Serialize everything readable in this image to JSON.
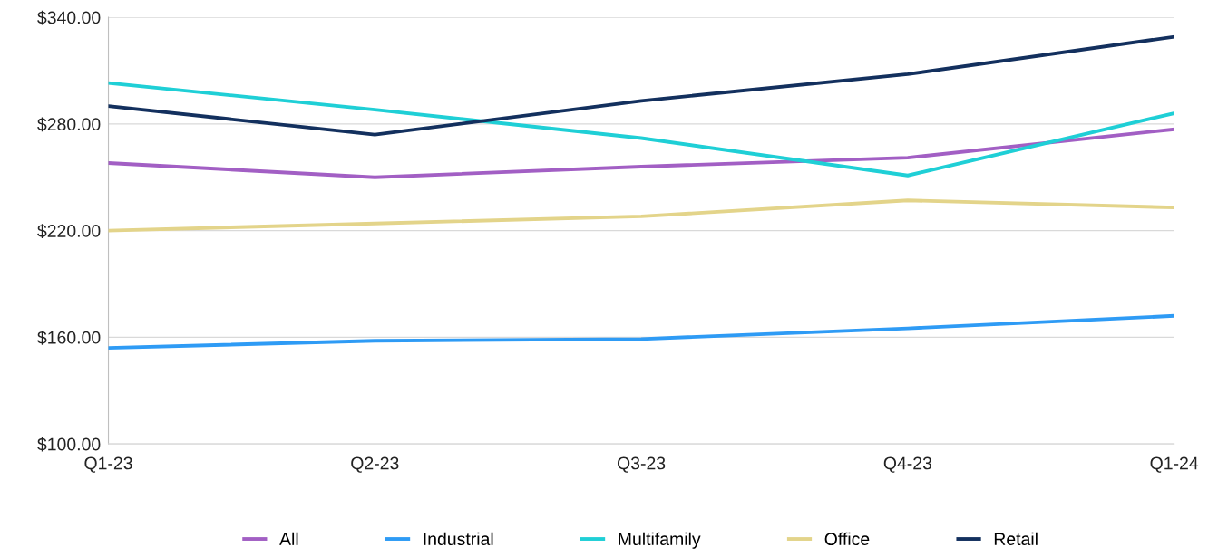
{
  "chart_data": {
    "type": "line",
    "categories": [
      "Q1-23",
      "Q2-23",
      "Q3-23",
      "Q4-23",
      "Q1-24"
    ],
    "series": [
      {
        "name": "All",
        "color": "#a25fc4",
        "values": [
          258,
          250,
          256,
          261,
          277
        ]
      },
      {
        "name": "Industrial",
        "color": "#2e9bf5",
        "values": [
          154,
          158,
          159,
          165,
          172
        ]
      },
      {
        "name": "Multifamily",
        "color": "#1fcfd6",
        "values": [
          303,
          288,
          272,
          251,
          286
        ]
      },
      {
        "name": "Office",
        "color": "#e3d48a",
        "values": [
          220,
          224,
          228,
          237,
          233
        ]
      },
      {
        "name": "Retail",
        "color": "#13305e",
        "values": [
          290,
          274,
          293,
          308,
          329
        ]
      }
    ],
    "ylim": [
      100,
      340
    ],
    "yticks": [
      {
        "value": 100,
        "label": "$100.00"
      },
      {
        "value": 160,
        "label": "$160.00"
      },
      {
        "value": 220,
        "label": "$220.00"
      },
      {
        "value": 280,
        "label": "$280.00"
      },
      {
        "value": 340,
        "label": "$340.00"
      }
    ],
    "grid": "y",
    "legend": "bottom",
    "marker": "none",
    "line_style": "solid"
  }
}
